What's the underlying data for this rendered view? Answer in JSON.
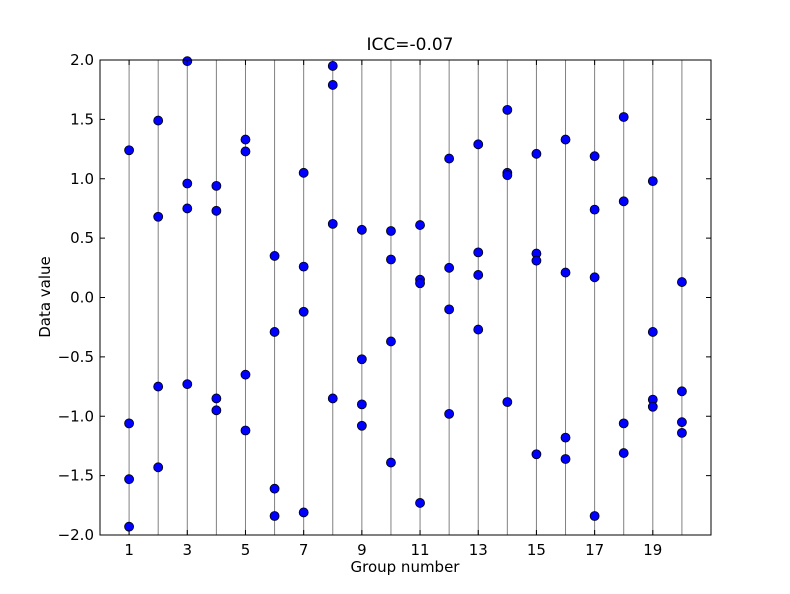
{
  "chart_data": {
    "type": "scatter",
    "title": "ICC=-0.07",
    "xlabel": "Group number",
    "ylabel": "Data value",
    "xlim": [
      0.0,
      21.0
    ],
    "ylim": [
      -2.0,
      2.0
    ],
    "x_ticks": [
      1,
      3,
      5,
      7,
      9,
      11,
      13,
      15,
      17,
      19
    ],
    "x_tick_labels": [
      "1",
      "3",
      "5",
      "7",
      "9",
      "11",
      "13",
      "15",
      "17",
      "19"
    ],
    "y_ticks": [
      -2.0,
      -1.5,
      -1.0,
      -0.5,
      0.0,
      0.5,
      1.0,
      1.5,
      2.0
    ],
    "y_tick_labels": [
      "−2.0",
      "−1.5",
      "−1.0",
      "−0.5",
      "0.0",
      "0.5",
      "1.0",
      "1.5",
      "2.0"
    ],
    "group_lines": [
      1,
      2,
      3,
      4,
      5,
      6,
      7,
      8,
      9,
      10,
      11,
      12,
      13,
      14,
      15,
      16,
      17,
      18,
      19,
      20
    ],
    "grid": false,
    "legend": "none",
    "colors": {
      "marker_fill": "#0000ff",
      "marker_edge": "#000000",
      "group_line": "#808080"
    },
    "points": [
      {
        "x": 1,
        "y": 1.24
      },
      {
        "x": 1,
        "y": -1.06
      },
      {
        "x": 1,
        "y": -1.53
      },
      {
        "x": 1,
        "y": -1.93
      },
      {
        "x": 2,
        "y": 1.49
      },
      {
        "x": 2,
        "y": 0.68
      },
      {
        "x": 2,
        "y": -0.75
      },
      {
        "x": 2,
        "y": -1.43
      },
      {
        "x": 3,
        "y": 1.99
      },
      {
        "x": 3,
        "y": 0.96
      },
      {
        "x": 3,
        "y": 0.75
      },
      {
        "x": 3,
        "y": -0.73
      },
      {
        "x": 4,
        "y": 0.94
      },
      {
        "x": 4,
        "y": 0.73
      },
      {
        "x": 4,
        "y": -0.85
      },
      {
        "x": 4,
        "y": -0.95
      },
      {
        "x": 5,
        "y": 1.33
      },
      {
        "x": 5,
        "y": 1.23
      },
      {
        "x": 5,
        "y": -0.65
      },
      {
        "x": 5,
        "y": -1.12
      },
      {
        "x": 6,
        "y": 0.35
      },
      {
        "x": 6,
        "y": -0.29
      },
      {
        "x": 6,
        "y": -1.61
      },
      {
        "x": 6,
        "y": -1.84
      },
      {
        "x": 7,
        "y": 1.05
      },
      {
        "x": 7,
        "y": 0.26
      },
      {
        "x": 7,
        "y": -0.12
      },
      {
        "x": 7,
        "y": -1.81
      },
      {
        "x": 8,
        "y": 1.95
      },
      {
        "x": 8,
        "y": 1.79
      },
      {
        "x": 8,
        "y": 0.62
      },
      {
        "x": 8,
        "y": -0.85
      },
      {
        "x": 9,
        "y": 0.57
      },
      {
        "x": 9,
        "y": -0.52
      },
      {
        "x": 9,
        "y": -0.9
      },
      {
        "x": 9,
        "y": -1.08
      },
      {
        "x": 10,
        "y": 0.56
      },
      {
        "x": 10,
        "y": 0.32
      },
      {
        "x": 10,
        "y": -0.37
      },
      {
        "x": 10,
        "y": -1.39
      },
      {
        "x": 11,
        "y": 0.61
      },
      {
        "x": 11,
        "y": 0.15
      },
      {
        "x": 11,
        "y": 0.12
      },
      {
        "x": 11,
        "y": -1.73
      },
      {
        "x": 12,
        "y": 1.17
      },
      {
        "x": 12,
        "y": 0.25
      },
      {
        "x": 12,
        "y": -0.1
      },
      {
        "x": 12,
        "y": -0.98
      },
      {
        "x": 13,
        "y": 1.29
      },
      {
        "x": 13,
        "y": 0.38
      },
      {
        "x": 13,
        "y": 0.19
      },
      {
        "x": 13,
        "y": -0.27
      },
      {
        "x": 14,
        "y": 1.58
      },
      {
        "x": 14,
        "y": 1.05
      },
      {
        "x": 14,
        "y": 1.03
      },
      {
        "x": 14,
        "y": -0.88
      },
      {
        "x": 15,
        "y": 1.21
      },
      {
        "x": 15,
        "y": 0.37
      },
      {
        "x": 15,
        "y": 0.31
      },
      {
        "x": 15,
        "y": -1.32
      },
      {
        "x": 16,
        "y": 1.33
      },
      {
        "x": 16,
        "y": 0.21
      },
      {
        "x": 16,
        "y": -1.18
      },
      {
        "x": 16,
        "y": -1.36
      },
      {
        "x": 17,
        "y": 1.19
      },
      {
        "x": 17,
        "y": 0.74
      },
      {
        "x": 17,
        "y": 0.17
      },
      {
        "x": 17,
        "y": -1.84
      },
      {
        "x": 18,
        "y": 1.52
      },
      {
        "x": 18,
        "y": 0.81
      },
      {
        "x": 18,
        "y": -1.06
      },
      {
        "x": 18,
        "y": -1.31
      },
      {
        "x": 19,
        "y": 0.98
      },
      {
        "x": 19,
        "y": -0.29
      },
      {
        "x": 19,
        "y": -0.86
      },
      {
        "x": 19,
        "y": -0.92
      },
      {
        "x": 20,
        "y": 0.13
      },
      {
        "x": 20,
        "y": -0.79
      },
      {
        "x": 20,
        "y": -1.05
      },
      {
        "x": 20,
        "y": -1.14
      }
    ]
  }
}
